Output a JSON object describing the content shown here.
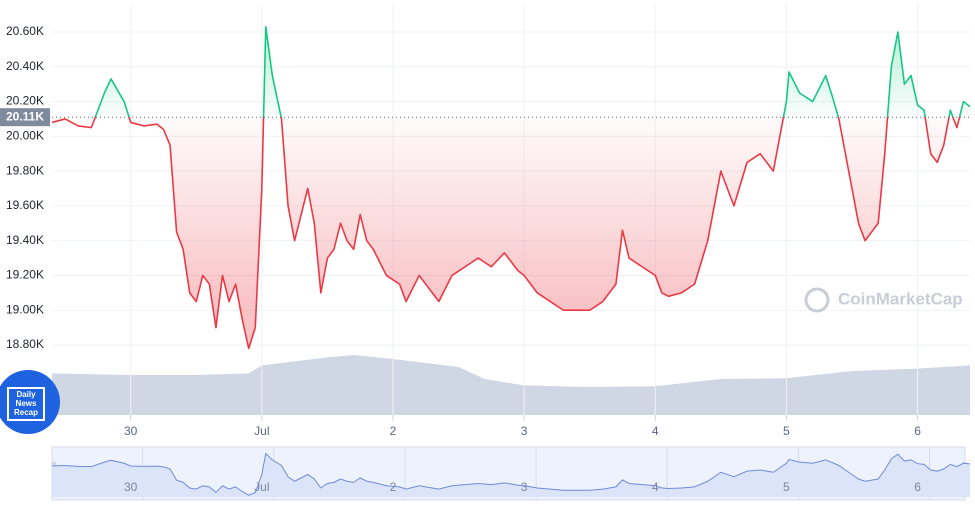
{
  "chart_data": {
    "type": "line",
    "x": [
      -0.6,
      -0.5,
      -0.4,
      -0.3,
      -0.2,
      -0.15,
      -0.05,
      0,
      0.1,
      0.2,
      0.25,
      0.3,
      0.35,
      0.4,
      0.45,
      0.5,
      0.55,
      0.6,
      0.65,
      0.7,
      0.75,
      0.8,
      0.85,
      0.9,
      0.95,
      1.0,
      1.03,
      1.08,
      1.15,
      1.2,
      1.25,
      1.3,
      1.35,
      1.4,
      1.45,
      1.5,
      1.55,
      1.6,
      1.65,
      1.7,
      1.75,
      1.8,
      1.85,
      1.95,
      2.05,
      2.1,
      2.2,
      2.3,
      2.35,
      2.45,
      2.55,
      2.65,
      2.75,
      2.85,
      2.95,
      3.0,
      3.1,
      3.2,
      3.3,
      3.4,
      3.5,
      3.6,
      3.7,
      3.75,
      3.8,
      3.9,
      4.0,
      4.05,
      4.1,
      4.2,
      4.3,
      4.4,
      4.5,
      4.6,
      4.7,
      4.8,
      4.9,
      5.0,
      5.02,
      5.1,
      5.2,
      5.3,
      5.35,
      5.4,
      5.45,
      5.5,
      5.55,
      5.6,
      5.7,
      5.75,
      5.8,
      5.85,
      5.9,
      5.95,
      6.0,
      6.05,
      6.1,
      6.15,
      6.2,
      6.25,
      6.3,
      6.35,
      6.4
    ],
    "series": [
      {
        "color": "#ea3943",
        "color_up": "#16c784",
        "values": [
          20080,
          20100,
          20060,
          20050,
          20250,
          20330,
          20200,
          20080,
          20060,
          20070,
          20040,
          19950,
          19450,
          19350,
          19100,
          19050,
          19200,
          19150,
          18900,
          19200,
          19050,
          19150,
          18950,
          18780,
          18900,
          19700,
          20630,
          20350,
          20100,
          19600,
          19400,
          19550,
          19700,
          19500,
          19100,
          19300,
          19350,
          19500,
          19400,
          19350,
          19550,
          19400,
          19350,
          19200,
          19150,
          19050,
          19200,
          19100,
          19050,
          19200,
          19250,
          19300,
          19250,
          19330,
          19230,
          19200,
          19100,
          19050,
          19000,
          19000,
          19000,
          19050,
          19150,
          19460,
          19300,
          19250,
          19200,
          19100,
          19080,
          19100,
          19150,
          19400,
          19800,
          19600,
          19850,
          19900,
          19800,
          20200,
          20370,
          20250,
          20200,
          20350,
          20230,
          20100,
          19900,
          19700,
          19500,
          19400,
          19500,
          19900,
          20400,
          20600,
          20300,
          20350,
          20180,
          20150,
          19900,
          19850,
          19950,
          20150,
          20050,
          20200,
          20170
        ]
      },
      {
        "color": "#cfd6e4",
        "axis": "y2",
        "x": [
          -0.6,
          0,
          0.5,
          0.9,
          1.0,
          1.5,
          1.7,
          2.0,
          2.5,
          2.7,
          3.0,
          3.5,
          4.0,
          4.5,
          5.0,
          5.5,
          6.0,
          6.4
        ],
        "values": [
          52,
          50,
          50,
          52,
          62,
          72,
          75,
          70,
          60,
          45,
          37,
          35,
          36,
          45,
          46,
          55,
          58,
          62
        ]
      }
    ],
    "xlim": [
      -0.6,
      6.4
    ],
    "xticks": [
      {
        "value": 0,
        "label": "30"
      },
      {
        "value": 1,
        "label": "Jul"
      },
      {
        "value": 2,
        "label": "2"
      },
      {
        "value": 3,
        "label": "3"
      },
      {
        "value": 4,
        "label": "4"
      },
      {
        "value": 5,
        "label": "5"
      },
      {
        "value": 6,
        "label": "6"
      }
    ],
    "ylim": [
      18700,
      20700
    ],
    "yticks": [
      {
        "value": 18800,
        "label": "18.80K"
      },
      {
        "value": 19000,
        "label": "19.00K"
      },
      {
        "value": 19200,
        "label": "19.20K"
      },
      {
        "value": 19400,
        "label": "19.40K"
      },
      {
        "value": 19600,
        "label": "19.60K"
      },
      {
        "value": 19800,
        "label": "19.80K"
      },
      {
        "value": 20000,
        "label": "20.00K"
      },
      {
        "value": 20200,
        "label": "20.20K"
      },
      {
        "value": 20400,
        "label": "20.40K"
      },
      {
        "value": 20600,
        "label": "20.60K"
      }
    ],
    "y2lim": [
      0,
      100
    ],
    "baseline": {
      "value": 20110,
      "label": "20.11K"
    },
    "grid": true,
    "watermark": "CoinMarketCap",
    "badge": [
      "Daily",
      "News",
      "Recap"
    ]
  }
}
